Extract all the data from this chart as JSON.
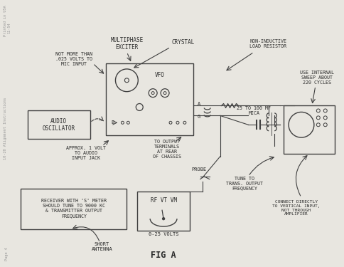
{
  "bg_color": "#e8e6e0",
  "line_color": "#404040",
  "text_color": "#282828",
  "title": "FIG A",
  "sidebar_top1": "Printed in USA",
  "sidebar_top2": "11-54",
  "sidebar_main": "10-20 Alignment Instructions",
  "sidebar_bottom": "Page 4",
  "labels": {
    "multiphase": "MULTIPHASE\nEXCITER",
    "not_more": "NOT MORE THAN\n.025 VOLTS TO\nMIC INPUT",
    "crystal": "CRYSTAL",
    "vfo": "VFO",
    "non_inductive": "NON-INDUCTIVE\nLOAD RESISTOR",
    "audio_osc": "AUDIO\nOSCILLATOR",
    "to_output": "TO OUTPUT\nTERMINALS\nAT REAR\nOF CHASSIS",
    "approx": "APPROX. 1 VOLT\nTO AUDIO\nINPUT JACK",
    "use_internal": "USE INTERNAL\nSWEEP ABOUT\n220 CYCLES",
    "mica": "25 TO 100 MF\nMICA",
    "receiver": "RECEIVER WITH 'S' METER\nSHOULD TUNE TO 9000 KC\n& TRANSMITTER OUTPUT\nFREQUENCY",
    "rf_vtvm": "RF VT VM",
    "volts": "0-25 VOLTS",
    "probe": "PROBE",
    "short_antenna": "SHORT\nANTENNA",
    "tune_to": "TUNE TO\nTRANS. OUTPUT\nFREQUENCY",
    "connect": "CONNECT DIRECTLY\nTO VERTICAL INPUT,\nNOT THROUGH\nAMPLIFIER"
  }
}
